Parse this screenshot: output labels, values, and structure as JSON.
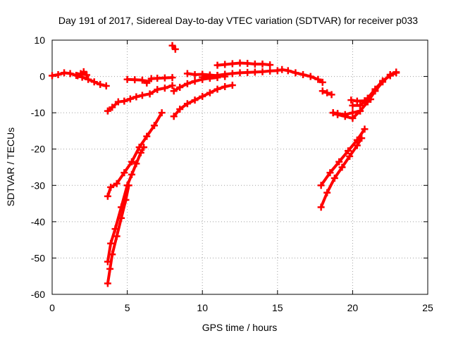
{
  "chart_data": {
    "type": "scatter",
    "title": "Day 191 of 2017, Sidereal Day-to-day VTEC variation (SDTVAR) for receiver p033",
    "xlabel": "GPS time / hours",
    "ylabel": "SDTVAR / TECUs",
    "xlim": [
      0,
      25
    ],
    "ylim": [
      -60,
      10
    ],
    "xticks": [
      0,
      5,
      10,
      15,
      20,
      25
    ],
    "yticks": [
      -60,
      -50,
      -40,
      -30,
      -20,
      -10,
      0,
      10
    ],
    "grid": true,
    "legend": "none",
    "series": [
      {
        "name": "arc-1",
        "color": "#ff0000",
        "x": [
          0.0,
          0.4,
          0.8,
          1.2,
          1.6,
          2.0,
          2.4,
          2.8,
          3.2,
          3.6
        ],
        "y": [
          0.2,
          0.5,
          1.0,
          0.8,
          0.3,
          -0.2,
          -0.8,
          -1.5,
          -2.2,
          -2.6
        ]
      },
      {
        "name": "arc-2",
        "color": "#ff0000",
        "x": [
          1.7,
          1.9,
          2.1,
          2.3
        ],
        "y": [
          0.2,
          0.8,
          1.3,
          0.4
        ]
      },
      {
        "name": "arc-3",
        "color": "#ff0000",
        "x": [
          5.0,
          5.5,
          6.0,
          6.3,
          6.6,
          7.0,
          7.5,
          8.0
        ],
        "y": [
          -0.8,
          -0.9,
          -1.0,
          -1.8,
          -0.6,
          -0.5,
          -0.4,
          -0.3
        ]
      },
      {
        "name": "arc-4",
        "color": "#ff0000",
        "x": [
          3.7,
          4.0,
          4.4,
          4.8,
          5.2,
          5.6,
          6.0,
          6.5,
          7.0,
          7.5,
          8.0
        ],
        "y": [
          -9.5,
          -8.5,
          -7.0,
          -6.8,
          -6.2,
          -5.6,
          -5.2,
          -4.8,
          -3.6,
          -3.2,
          -2.5
        ]
      },
      {
        "name": "arc-5",
        "color": "#ff0000",
        "x": [
          8.0,
          8.2
        ],
        "y": [
          8.5,
          7.5
        ]
      },
      {
        "name": "arc-6",
        "color": "#ff0000",
        "x": [
          9.0,
          9.5,
          10.0,
          10.5,
          11.0,
          11.5
        ],
        "y": [
          0.8,
          0.5,
          0.6,
          0.4,
          0.2,
          0.0
        ]
      },
      {
        "name": "arc-7",
        "color": "#ff0000",
        "x": [
          8.1,
          8.5,
          9.0,
          9.5,
          10.0,
          10.5,
          11.0
        ],
        "y": [
          -4.0,
          -3.0,
          -2.0,
          -1.3,
          -0.8,
          -0.5,
          -0.3
        ]
      },
      {
        "name": "arc-8",
        "color": "#ff0000",
        "x": [
          8.1,
          8.5,
          9.0,
          9.5,
          10.0,
          10.5,
          11.0,
          11.5,
          12.0
        ],
        "y": [
          -11.0,
          -9.0,
          -7.5,
          -6.5,
          -5.5,
          -4.5,
          -3.5,
          -2.8,
          -2.4
        ]
      },
      {
        "name": "arc-9",
        "color": "#ff0000",
        "x": [
          10.0,
          10.5,
          11.0,
          11.5,
          12.0,
          12.5,
          13.0,
          13.5,
          14.0,
          14.5,
          15.0
        ],
        "y": [
          -0.2,
          0.1,
          0.3,
          0.6,
          0.8,
          1.0,
          1.1,
          1.2,
          1.3,
          1.5,
          1.6
        ]
      },
      {
        "name": "arc-10",
        "color": "#ff0000",
        "x": [
          11.0,
          11.5,
          12.0,
          12.5,
          13.0,
          13.5,
          14.0,
          14.5
        ],
        "y": [
          3.1,
          3.3,
          3.5,
          3.7,
          3.6,
          3.4,
          3.4,
          3.2
        ]
      },
      {
        "name": "arc-11",
        "color": "#ff0000",
        "x": [
          15.3,
          15.7,
          16.2,
          16.7,
          17.2,
          17.7,
          18.0
        ],
        "y": [
          1.9,
          1.6,
          1.0,
          0.5,
          0.0,
          -0.8,
          -1.6
        ]
      },
      {
        "name": "arc-12",
        "color": "#ff0000",
        "x": [
          18.0,
          18.3,
          18.6
        ],
        "y": [
          -4.0,
          -4.5,
          -5.0
        ]
      },
      {
        "name": "arc-13",
        "color": "#ff0000",
        "x": [
          18.7,
          19.0,
          19.5,
          20.0,
          20.5
        ],
        "y": [
          -10.0,
          -10.2,
          -10.5,
          -10.0,
          -9.5
        ]
      },
      {
        "name": "arc-14",
        "color": "#ff0000",
        "x": [
          18.7,
          19.0,
          19.5,
          20.0,
          20.5,
          21.0,
          21.5,
          22.0,
          22.5,
          22.9
        ],
        "y": [
          -10.0,
          -10.5,
          -11.0,
          -11.5,
          -9.5,
          -7.0,
          -4.0,
          -1.5,
          0.5,
          1.2
        ]
      },
      {
        "name": "arc-15",
        "color": "#ff0000",
        "x": [
          19.9,
          20.3,
          20.8,
          21.2
        ],
        "y": [
          -6.5,
          -6.8,
          -6.7,
          -6.3
        ]
      },
      {
        "name": "arc-16",
        "color": "#ff0000",
        "x": [
          20.0,
          20.5,
          21.0,
          21.5,
          22.0,
          22.5,
          22.9
        ],
        "y": [
          -8.0,
          -8.0,
          -6.0,
          -3.5,
          -1.2,
          0.2,
          1.0
        ]
      },
      {
        "name": "arc-17",
        "color": "#ff0000",
        "x": [
          3.7,
          3.9,
          4.3,
          4.8,
          5.3,
          5.8,
          6.3,
          6.8,
          7.3
        ],
        "y": [
          -33.0,
          -30.5,
          -29.5,
          -26.5,
          -23.5,
          -19.5,
          -16.5,
          -13.5,
          -10.0
        ]
      },
      {
        "name": "arc-18",
        "color": "#ff0000",
        "x": [
          3.7,
          3.9,
          4.2,
          4.6,
          5.0,
          5.3,
          5.6,
          5.9,
          6.1
        ],
        "y": [
          -51.0,
          -46.0,
          -42.0,
          -36.0,
          -30.0,
          -27.0,
          -24.0,
          -21.0,
          -19.5
        ]
      },
      {
        "name": "arc-19",
        "color": "#ff0000",
        "x": [
          3.7,
          3.85,
          4.0,
          4.3,
          4.6,
          4.9,
          5.1
        ],
        "y": [
          -57.0,
          -53.0,
          -49.0,
          -44.0,
          -39.0,
          -34.0,
          -30.0
        ]
      },
      {
        "name": "arc-20",
        "color": "#ff0000",
        "x": [
          17.9,
          18.5,
          19.1,
          19.7,
          20.3,
          20.8
        ],
        "y": [
          -30.0,
          -26.5,
          -23.5,
          -20.5,
          -17.5,
          -14.5
        ]
      },
      {
        "name": "arc-21",
        "color": "#ff0000",
        "x": [
          17.9,
          18.3,
          18.8,
          19.3,
          19.8,
          20.3,
          20.6
        ],
        "y": [
          -36.0,
          -32.0,
          -28.0,
          -25.0,
          -22.0,
          -19.0,
          -17.0
        ]
      }
    ]
  }
}
